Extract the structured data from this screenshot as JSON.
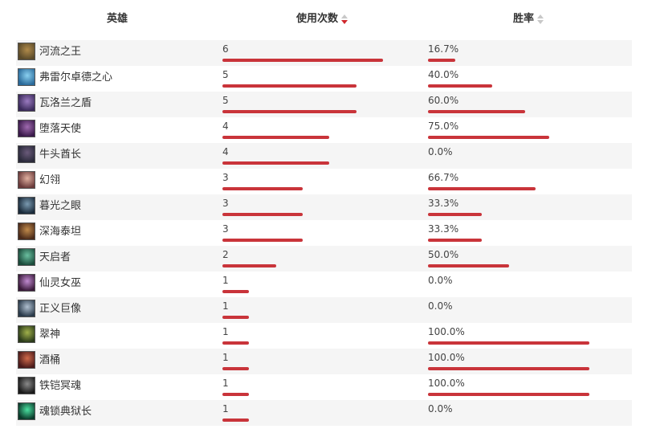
{
  "header": {
    "hero_label": "英雄",
    "uses_label": "使用次数",
    "winrate_label": "胜率"
  },
  "colors": {
    "bar": "#c9343a",
    "sort_active": "#d0282d",
    "sort_inactive": "#c8c8c8",
    "row_alt": "#f5f5f5"
  },
  "max_uses": 6,
  "rows": [
    {
      "name": "河流之王",
      "uses": "6",
      "winrate": "16.7%",
      "uses_num": 6,
      "win_pct": 16.7,
      "avatar_colors": [
        "#5a4a2a",
        "#b08a4a"
      ],
      "icon": "hero-portrait-icon"
    },
    {
      "name": "弗雷尔卓德之心",
      "uses": "5",
      "winrate": "40.0%",
      "uses_num": 5,
      "win_pct": 40.0,
      "avatar_colors": [
        "#2a6a9a",
        "#8ad0f0"
      ],
      "icon": "hero-portrait-icon"
    },
    {
      "name": "瓦洛兰之盾",
      "uses": "5",
      "winrate": "60.0%",
      "uses_num": 5,
      "win_pct": 60.0,
      "avatar_colors": [
        "#3a2a5a",
        "#9a7ac0"
      ],
      "icon": "hero-portrait-icon"
    },
    {
      "name": "堕落天使",
      "uses": "4",
      "winrate": "75.0%",
      "uses_num": 4,
      "win_pct": 75.0,
      "avatar_colors": [
        "#3a1a4a",
        "#a06ab0"
      ],
      "icon": "hero-portrait-icon"
    },
    {
      "name": "牛头酋长",
      "uses": "4",
      "winrate": "0.0%",
      "uses_num": 4,
      "win_pct": 0.0,
      "avatar_colors": [
        "#2a2a3a",
        "#6a5a7a"
      ],
      "icon": "hero-portrait-icon"
    },
    {
      "name": "幻翎",
      "uses": "3",
      "winrate": "66.7%",
      "uses_num": 3,
      "win_pct": 66.7,
      "avatar_colors": [
        "#6a3a3a",
        "#e0b0a0"
      ],
      "icon": "hero-portrait-icon"
    },
    {
      "name": "暮光之眼",
      "uses": "3",
      "winrate": "33.3%",
      "uses_num": 3,
      "win_pct": 33.3,
      "avatar_colors": [
        "#1a2a3a",
        "#7a9ab0"
      ],
      "icon": "hero-portrait-icon"
    },
    {
      "name": "深海泰坦",
      "uses": "3",
      "winrate": "33.3%",
      "uses_num": 3,
      "win_pct": 33.3,
      "avatar_colors": [
        "#4a2a1a",
        "#c08a4a"
      ],
      "icon": "hero-portrait-icon"
    },
    {
      "name": "天启者",
      "uses": "2",
      "winrate": "50.0%",
      "uses_num": 2,
      "win_pct": 50.0,
      "avatar_colors": [
        "#1a4a3a",
        "#6ac0a0"
      ],
      "icon": "hero-portrait-icon"
    },
    {
      "name": "仙灵女巫",
      "uses": "1",
      "winrate": "0.0%",
      "uses_num": 1,
      "win_pct": 0.0,
      "avatar_colors": [
        "#3a1a3a",
        "#c08ad0"
      ],
      "icon": "hero-portrait-icon"
    },
    {
      "name": "正义巨像",
      "uses": "1",
      "winrate": "0.0%",
      "uses_num": 1,
      "win_pct": 0.0,
      "avatar_colors": [
        "#2a3a4a",
        "#b0c0d0"
      ],
      "icon": "hero-portrait-icon"
    },
    {
      "name": "翠神",
      "uses": "1",
      "winrate": "100.0%",
      "uses_num": 1,
      "win_pct": 100.0,
      "avatar_colors": [
        "#2a3a1a",
        "#a0b04a"
      ],
      "icon": "hero-portrait-icon"
    },
    {
      "name": "酒桶",
      "uses": "1",
      "winrate": "100.0%",
      "uses_num": 1,
      "win_pct": 100.0,
      "avatar_colors": [
        "#4a1a1a",
        "#d06a4a"
      ],
      "icon": "hero-portrait-icon"
    },
    {
      "name": "铁铠冥魂",
      "uses": "1",
      "winrate": "100.0%",
      "uses_num": 1,
      "win_pct": 100.0,
      "avatar_colors": [
        "#1a1a1a",
        "#8a8a8a"
      ],
      "icon": "hero-portrait-icon"
    },
    {
      "name": "魂锁典狱长",
      "uses": "1",
      "winrate": "0.0%",
      "uses_num": 1,
      "win_pct": 0.0,
      "avatar_colors": [
        "#0a3a2a",
        "#4ae0a0"
      ],
      "icon": "hero-portrait-icon"
    }
  ]
}
